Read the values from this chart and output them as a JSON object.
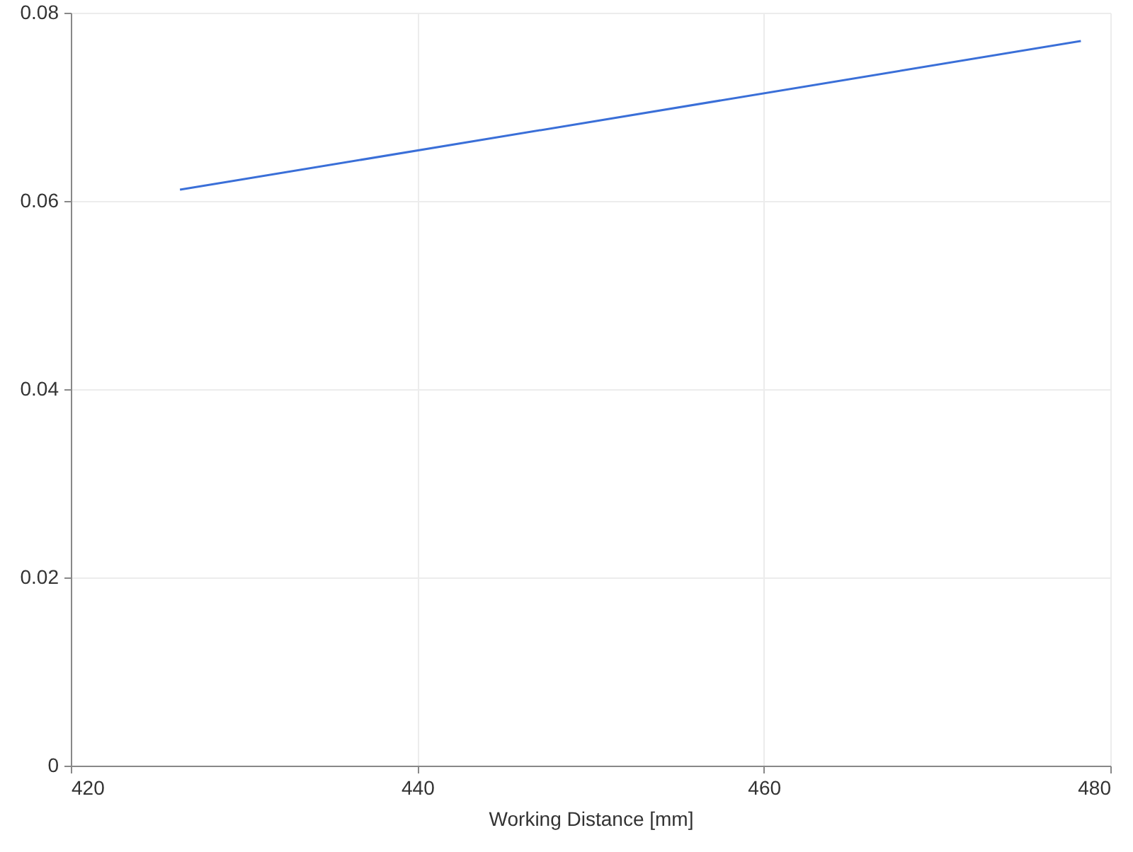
{
  "chart_data": {
    "type": "line",
    "xlabel": "Working Distance [mm]",
    "series": [
      {
        "color": "#3a6fd8",
        "x": [
          426.3,
          478.3
        ],
        "values": [
          0.0612,
          0.077
        ]
      }
    ],
    "xlim": [
      420,
      480
    ],
    "xticks": [
      420,
      440,
      460,
      480
    ],
    "ylim": [
      0,
      0.08
    ],
    "yticks": [
      0,
      0.02,
      0.04,
      0.06,
      0.08
    ],
    "grid": true,
    "marker": "none",
    "line_style": "solid"
  }
}
